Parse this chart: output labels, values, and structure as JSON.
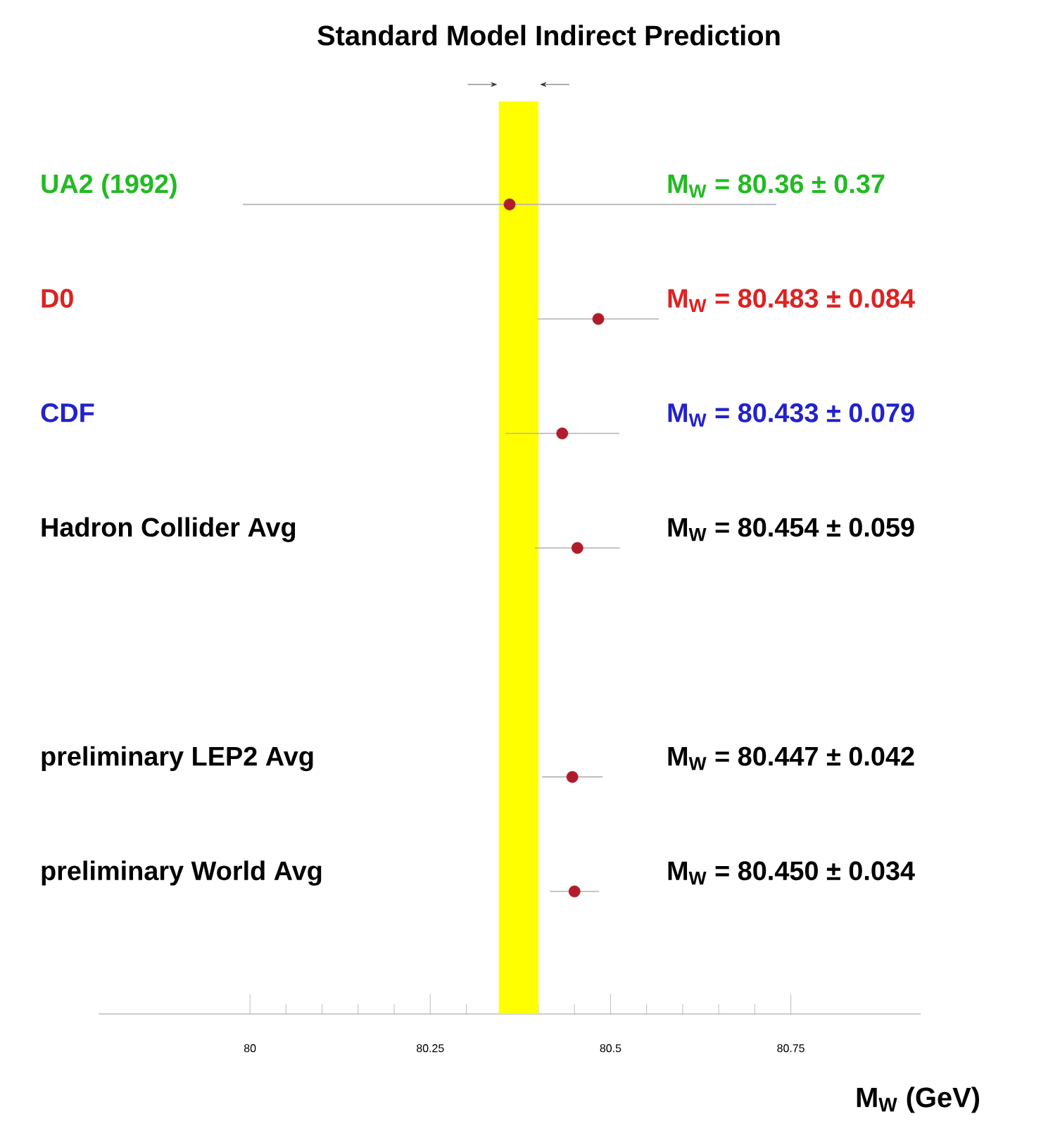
{
  "chart_data": {
    "type": "scatter",
    "title": "Standard Model Indirect Prediction",
    "orientation": "horizontal",
    "categories": [
      "UA2 (1992)",
      "D0",
      "CDF",
      "Hadron Collider Avg",
      null,
      "preliminary LEP2 Avg",
      "preliminary World Avg"
    ],
    "values": [
      80.36,
      80.483,
      80.433,
      80.454,
      null,
      80.447,
      80.45
    ],
    "errors": [
      0.37,
      0.084,
      0.079,
      0.059,
      null,
      0.042,
      0.034
    ],
    "annotations": [
      "M$_{W}$ = 80.36 ± 0.37",
      "M$_{W}$ = 80.483 ± 0.084",
      "M$_{W}$ = 80.433 ± 0.079",
      "M$_{W}$ = 80.454 ± 0.059",
      "M$_{W}$ = 80.447 ± 0.042",
      "M$_{W}$ = 80.450 ± 0.034"
    ],
    "color": "#b01c2c",
    "xlim": [
      79.79,
      80.93
    ],
    "xticks": [
      80,
      80.25,
      80.5,
      80.75
    ],
    "xlabel": "M$_{W}$ (GeV)",
    "bands": [
      {
        "axis": "x",
        "from": 80.345,
        "to": 80.4,
        "color": "#ffff00"
      }
    ],
    "tick_labels": "x"
  }
}
